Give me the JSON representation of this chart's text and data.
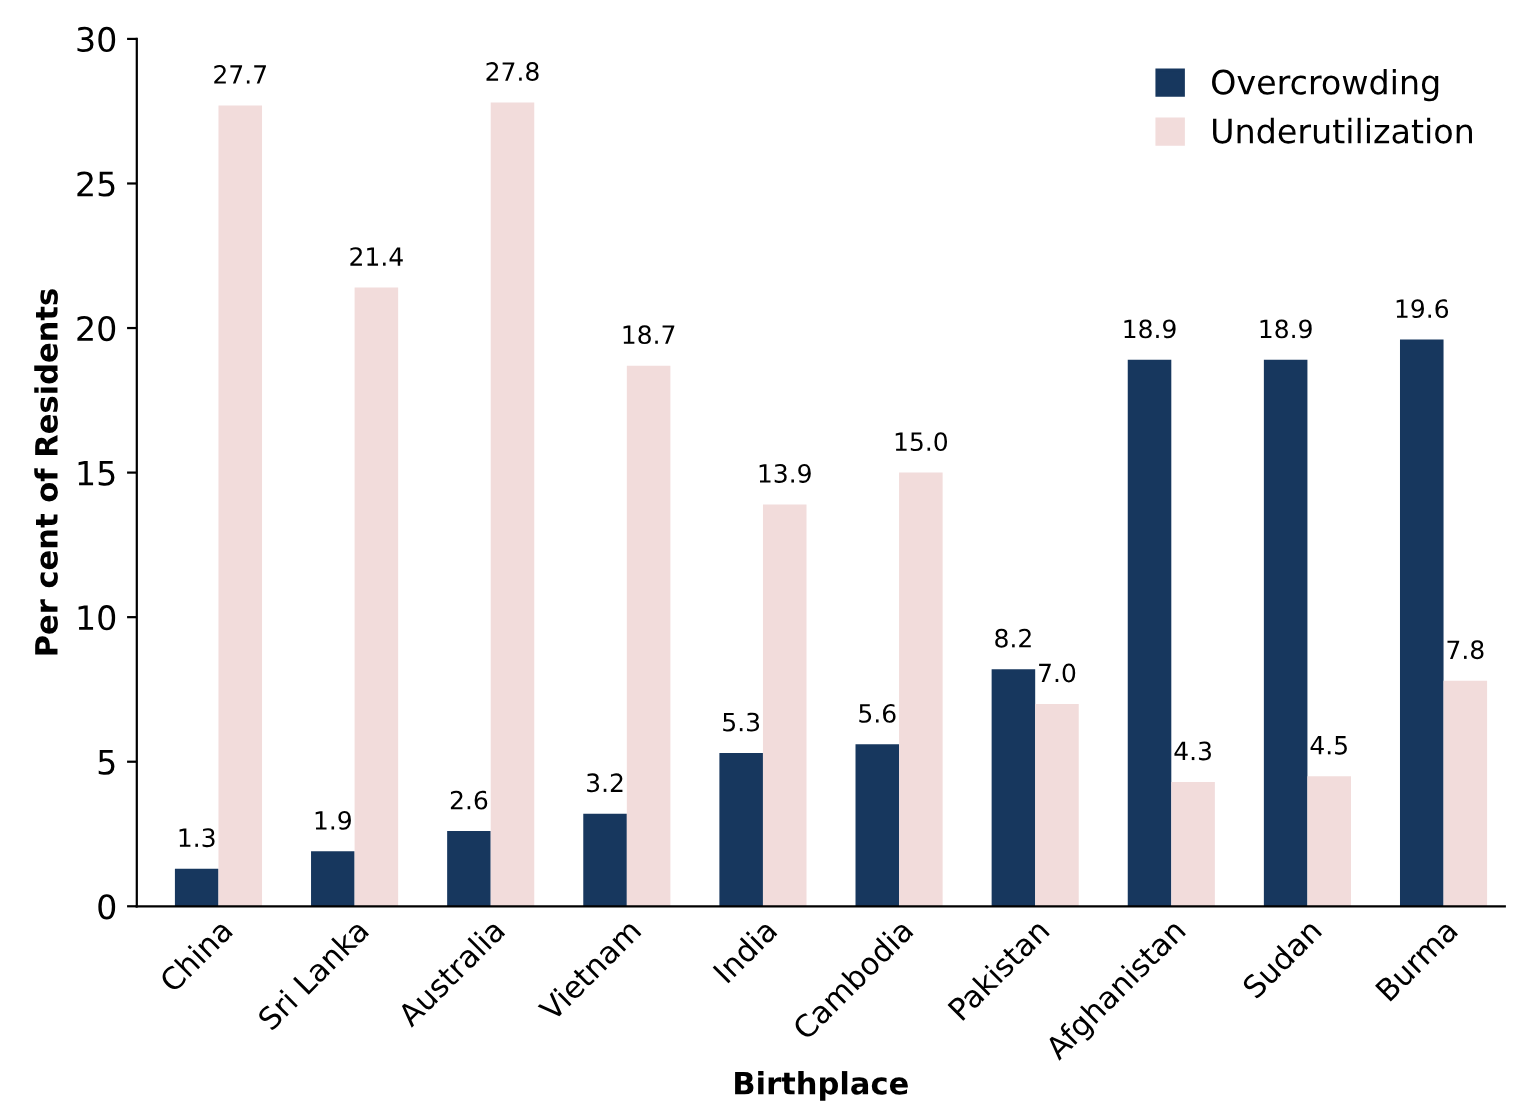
{
  "chart_data": {
    "type": "bar",
    "xlabel": "Birthplace",
    "ylabel": "Per cent of Residents",
    "categories": [
      "China",
      "Sri Lanka",
      "Australia",
      "Vietnam",
      "India",
      "Cambodia",
      "Pakistan",
      "Afghanistan",
      "Sudan",
      "Burma"
    ],
    "series": [
      {
        "name": "Overcrowding",
        "color": "#17375e",
        "values": [
          1.3,
          1.9,
          2.6,
          3.2,
          5.3,
          5.6,
          8.2,
          18.9,
          18.9,
          19.6
        ],
        "value_labels": [
          "1.3",
          "1.9",
          "2.6",
          "3.2",
          "5.3",
          "5.6",
          "8.2",
          "18.9",
          "18.9",
          "19.6"
        ]
      },
      {
        "name": "Underutilization",
        "color": "#f2dcdb",
        "values": [
          27.7,
          21.4,
          27.8,
          18.7,
          13.9,
          15.0,
          7.0,
          4.3,
          4.5,
          7.8
        ],
        "value_labels": [
          "27.7",
          "21.4",
          "27.8",
          "18.7",
          "13.9",
          "15.0",
          "7.0",
          "4.3",
          "4.5",
          "7.8"
        ]
      }
    ],
    "ylim": [
      0,
      30
    ],
    "yticks": [
      0,
      5,
      10,
      15,
      20,
      25,
      30
    ],
    "grid": false,
    "legend": "top right"
  }
}
